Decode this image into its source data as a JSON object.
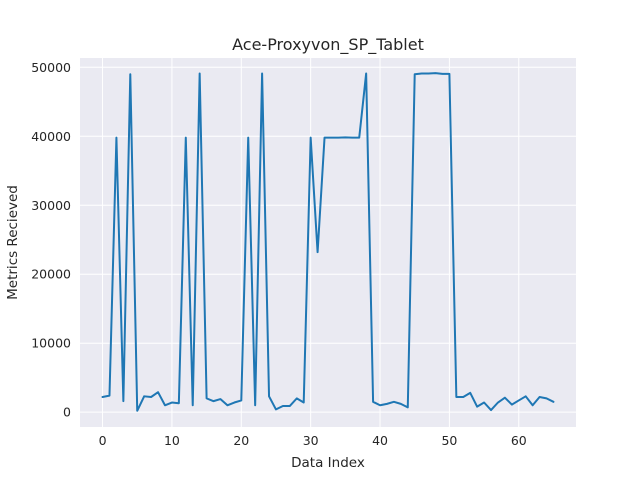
{
  "chart_data": {
    "type": "line",
    "title": "Ace-Proxyvon_SP_Tablet",
    "xlabel": "Data Index",
    "ylabel": "Metrics Recieved",
    "xlim": [
      -3.25,
      68.25
    ],
    "ylim": [
      -2150,
      51350
    ],
    "x_ticks": [
      0,
      10,
      20,
      30,
      40,
      50,
      60
    ],
    "y_ticks": [
      0,
      10000,
      20000,
      30000,
      40000,
      50000
    ],
    "grid": true,
    "style": {
      "background": "#eaeaf2",
      "grid_color": "#ffffff",
      "line_color": "#1f77b4"
    },
    "series": [
      {
        "x": [
          0,
          1,
          2,
          3,
          4,
          5,
          6,
          7,
          8,
          9,
          10,
          11,
          12,
          13,
          14,
          15,
          16,
          17,
          18,
          19,
          20,
          21,
          22,
          23,
          24,
          25,
          26,
          27,
          28,
          29,
          30,
          31,
          32,
          33,
          34,
          35,
          36,
          37,
          38,
          39,
          40,
          41,
          42,
          43,
          44,
          45,
          46,
          47,
          48,
          49,
          50,
          51,
          52,
          53,
          54,
          55,
          56,
          57,
          58,
          59,
          60,
          61,
          62,
          63,
          64,
          65
        ],
        "values": [
          2200,
          2400,
          39800,
          1600,
          49000,
          200,
          2300,
          2200,
          2900,
          1000,
          1400,
          1300,
          39800,
          1000,
          49100,
          2000,
          1600,
          1900,
          1000,
          1400,
          1700,
          39800,
          1000,
          49100,
          2300,
          400,
          900,
          900,
          2000,
          1400,
          39800,
          23200,
          39800,
          39800,
          39800,
          39850,
          39800,
          39800,
          49100,
          1500,
          1000,
          1200,
          1500,
          1200,
          700,
          49000,
          49100,
          49100,
          49150,
          49050,
          49050,
          2200,
          2200,
          2800,
          800,
          1400,
          300,
          1400,
          2100,
          1100,
          1700,
          2300,
          1000,
          2200,
          2000,
          1500
        ]
      }
    ]
  }
}
